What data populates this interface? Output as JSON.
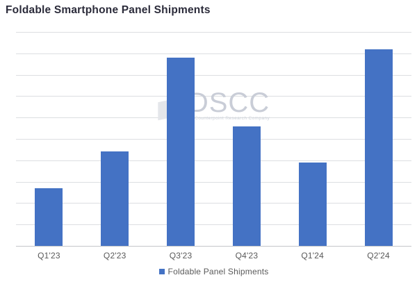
{
  "page": {
    "title": "Foldable Smartphone Panel Shipments"
  },
  "chart_data": {
    "type": "bar",
    "title": "Foldable Smartphone Panel Shipments",
    "categories": [
      "Q1'23",
      "Q2'23",
      "Q3'23",
      "Q4'23",
      "Q1'24",
      "Q2'24"
    ],
    "series": [
      {
        "name": "Foldable Panel Shipments",
        "values": [
          2.7,
          4.4,
          8.8,
          5.6,
          3.9,
          9.2
        ]
      }
    ],
    "xlabel": "",
    "ylabel": "",
    "ylim": [
      0,
      10
    ],
    "gridline_step": 1,
    "grid": true,
    "y_tick_labels_shown": false,
    "legend_position": "bottom",
    "bar_color": "#4472C4"
  },
  "legend": {
    "items": [
      {
        "label": "Foldable Panel Shipments",
        "color": "#4472C4"
      }
    ]
  },
  "watermark": {
    "text": "DSCC",
    "tagline": "A Counterpoint Research Company"
  },
  "colors": {
    "bar": "#4472C4",
    "gridline": "#dcdee1",
    "axis_line": "#c3c6c9",
    "title_text": "#2b2b3a",
    "label_text": "#595959",
    "watermark_text": "#c9cdd7",
    "background": "#ffffff"
  }
}
